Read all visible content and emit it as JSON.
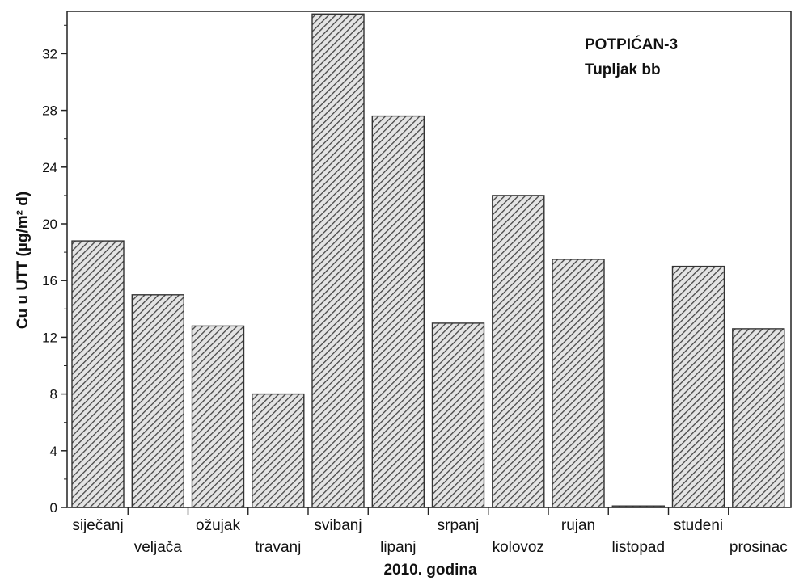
{
  "chart_data": {
    "type": "bar",
    "annotation": [
      "POTPIĆAN-3",
      "Tupljak bb"
    ],
    "xlabel": "2010. godina",
    "ylabel": "Cu u UTT (µg/m² d)",
    "categories": [
      "siječanj",
      "veljača",
      "ožujak",
      "travanj",
      "svibanj",
      "lipanj",
      "srpanj",
      "kolovoz",
      "rujan",
      "listopad",
      "studeni",
      "prosinac"
    ],
    "values": [
      18.8,
      15.0,
      12.8,
      8.0,
      34.8,
      27.6,
      13.0,
      22.0,
      17.5,
      0.1,
      17.0,
      12.6
    ],
    "yticks": [
      0,
      4,
      8,
      12,
      16,
      20,
      24,
      28,
      32
    ],
    "ylim": [
      0,
      35
    ],
    "grid": false,
    "bar_fill": "diagonal hatch",
    "colors": {
      "bar_stroke": "#333333",
      "hatch": "#444444",
      "bar_bg": "#dcdcdc"
    }
  }
}
